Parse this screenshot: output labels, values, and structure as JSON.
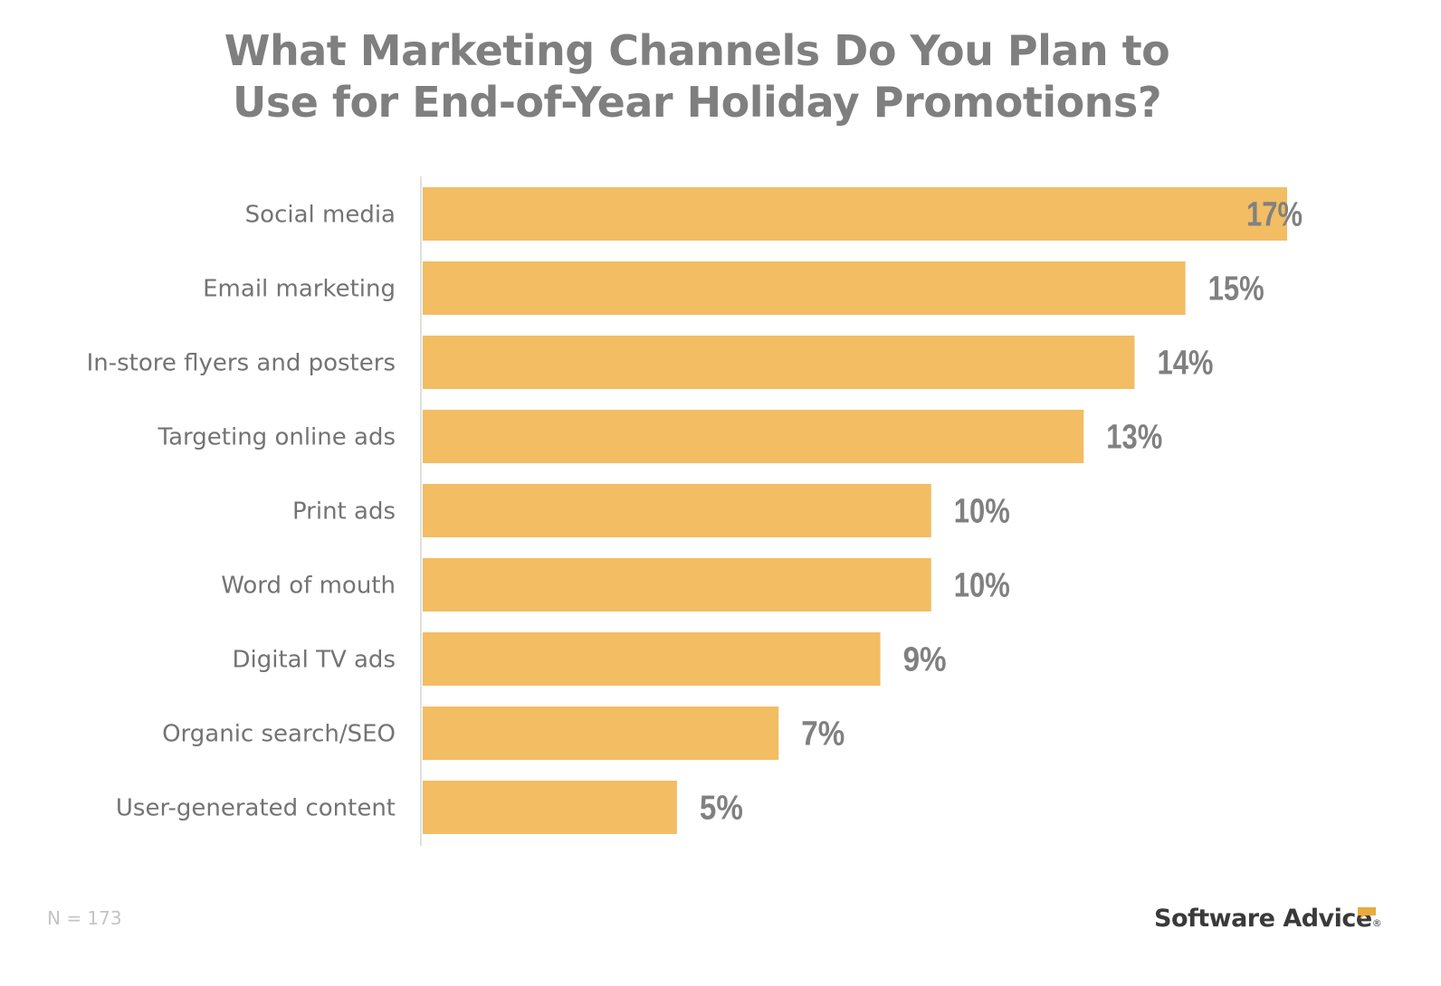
{
  "chart_data": {
    "type": "bar",
    "orientation": "horizontal",
    "title": "What Marketing Channels Do You Plan to Use for End-of-Year Holiday Promotions?",
    "title_lines": [
      "What Marketing Channels Do You Plan to",
      "Use for End-of-Year Holiday Promotions?"
    ],
    "xlabel": "",
    "ylabel": "",
    "categories": [
      "Social media",
      "Email marketing",
      "In-store flyers and posters",
      "Targeting online ads",
      "Print ads",
      "Word of mouth",
      "Digital TV ads",
      "Organic search/SEO",
      "User-generated content"
    ],
    "values": [
      17,
      15,
      14,
      13,
      10,
      10,
      9,
      7,
      5
    ],
    "value_labels": [
      "17%",
      "15%",
      "14%",
      "13%",
      "10%",
      "10%",
      "9%",
      "7%",
      "5%"
    ],
    "unit": "%",
    "xlim": [
      0,
      17
    ],
    "grid": false,
    "legend": "none",
    "bar_color": "#f2bd63",
    "annotation": "N = 173"
  },
  "footer": {
    "sample_size": "N = 173",
    "brand": "Software Advice",
    "brand_suffix": "®",
    "brand_accent": "#e8ab3e"
  }
}
